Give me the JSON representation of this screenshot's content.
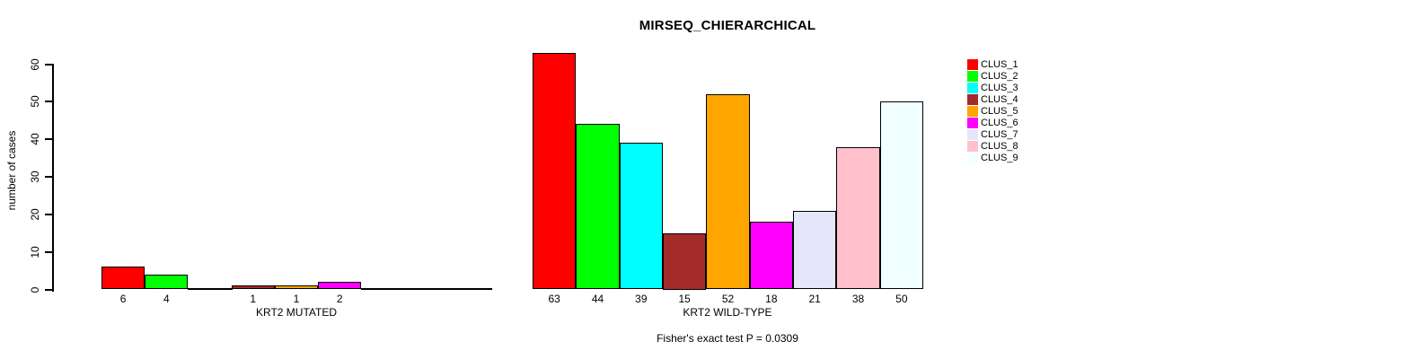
{
  "chart_data": {
    "type": "bar",
    "title": "MIRSEQ_CHIERARCHICAL",
    "ylabel": "number of cases",
    "ylim": [
      0,
      63
    ],
    "yticks": [
      0,
      10,
      20,
      30,
      40,
      50,
      60
    ],
    "grid": false,
    "legend_position": "top-right",
    "categories": [
      "CLUS_1",
      "CLUS_2",
      "CLUS_3",
      "CLUS_4",
      "CLUS_5",
      "CLUS_6",
      "CLUS_7",
      "CLUS_8",
      "CLUS_9"
    ],
    "colors": [
      "#FF0000",
      "#00FF00",
      "#00FFFF",
      "#A52A2A",
      "#FFA500",
      "#FF00FF",
      "#E6E6FA",
      "#FFC0CB",
      "#F0FFFF"
    ],
    "panels": [
      {
        "xlabel": "KRT2 MUTATED",
        "values": [
          6,
          4,
          0,
          1,
          1,
          2,
          0,
          0,
          0
        ]
      },
      {
        "xlabel": "KRT2 WILD-TYPE",
        "values": [
          63,
          44,
          39,
          15,
          52,
          18,
          21,
          38,
          50
        ]
      }
    ],
    "annotation": "Fisher's exact test P = 0.0309",
    "bar_value_labels_shown": true,
    "zero_bars_drawn_as_flat_lines": true
  }
}
